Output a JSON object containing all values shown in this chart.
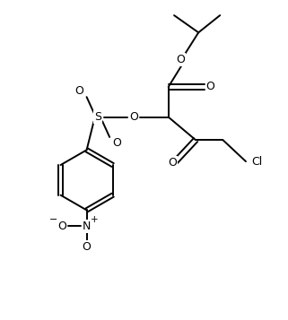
{
  "bg_color": "#ffffff",
  "line_color": "#000000",
  "line_width": 1.4,
  "figsize": [
    3.21,
    3.57
  ],
  "dpi": 100,
  "xlim": [
    0,
    10
  ],
  "ylim": [
    0,
    11.1
  ]
}
